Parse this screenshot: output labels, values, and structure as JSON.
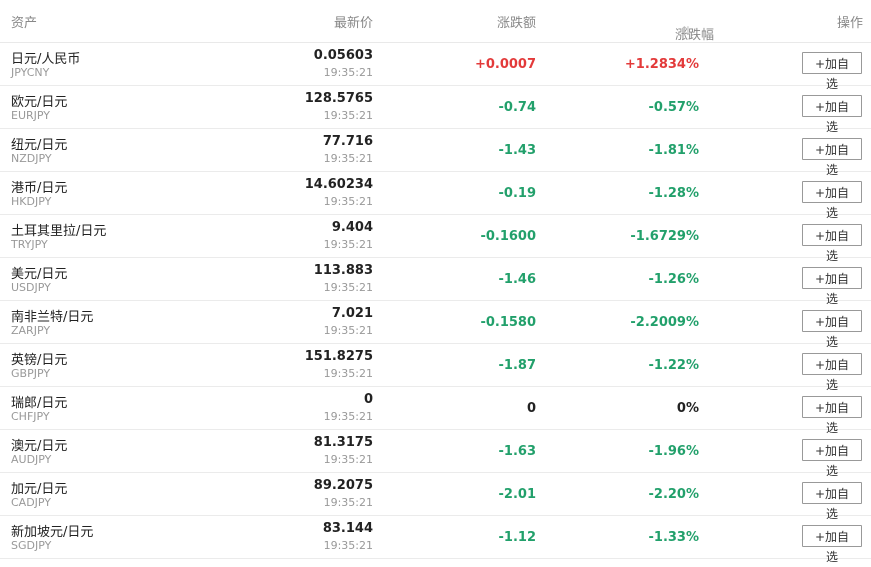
{
  "header": {
    "asset": "资产",
    "price": "最新价",
    "change": "涨跌额",
    "pct": "涨跌幅",
    "sort_icon": "⇅",
    "op": "操作"
  },
  "colors": {
    "up": "#e33a3a",
    "down": "#22a06b",
    "flat": "#222222"
  },
  "rows": [
    {
      "name": "日元/人民币",
      "code": "JPYCNY",
      "price": "0.05603",
      "time": "19:35:21",
      "change": "+0.0007",
      "pct": "+1.2834%",
      "trend": "up",
      "btn": "+加自选"
    },
    {
      "name": "欧元/日元",
      "code": "EURJPY",
      "price": "128.5765",
      "time": "19:35:21",
      "change": "-0.74",
      "pct": "-0.57%",
      "trend": "down",
      "btn": "+加自选"
    },
    {
      "name": "纽元/日元",
      "code": "NZDJPY",
      "price": "77.716",
      "time": "19:35:21",
      "change": "-1.43",
      "pct": "-1.81%",
      "trend": "down",
      "btn": "+加自选"
    },
    {
      "name": "港币/日元",
      "code": "HKDJPY",
      "price": "14.60234",
      "time": "19:35:21",
      "change": "-0.19",
      "pct": "-1.28%",
      "trend": "down",
      "btn": "+加自选"
    },
    {
      "name": "土耳其里拉/日元",
      "code": "TRYJPY",
      "price": "9.404",
      "time": "19:35:21",
      "change": "-0.1600",
      "pct": "-1.6729%",
      "trend": "down",
      "btn": "+加自选"
    },
    {
      "name": "美元/日元",
      "code": "USDJPY",
      "price": "113.883",
      "time": "19:35:21",
      "change": "-1.46",
      "pct": "-1.26%",
      "trend": "down",
      "btn": "+加自选"
    },
    {
      "name": "南非兰特/日元",
      "code": "ZARJPY",
      "price": "7.021",
      "time": "19:35:21",
      "change": "-0.1580",
      "pct": "-2.2009%",
      "trend": "down",
      "btn": "+加自选"
    },
    {
      "name": "英镑/日元",
      "code": "GBPJPY",
      "price": "151.8275",
      "time": "19:35:21",
      "change": "-1.87",
      "pct": "-1.22%",
      "trend": "down",
      "btn": "+加自选"
    },
    {
      "name": "瑞郎/日元",
      "code": "CHFJPY",
      "price": "0",
      "time": "19:35:21",
      "change": "0",
      "pct": "0%",
      "trend": "flat",
      "btn": "+加自选"
    },
    {
      "name": "澳元/日元",
      "code": "AUDJPY",
      "price": "81.3175",
      "time": "19:35:21",
      "change": "-1.63",
      "pct": "-1.96%",
      "trend": "down",
      "btn": "+加自选"
    },
    {
      "name": "加元/日元",
      "code": "CADJPY",
      "price": "89.2075",
      "time": "19:35:21",
      "change": "-2.01",
      "pct": "-2.20%",
      "trend": "down",
      "btn": "+加自选"
    },
    {
      "name": "新加坡元/日元",
      "code": "SGDJPY",
      "price": "83.144",
      "time": "19:35:21",
      "change": "-1.12",
      "pct": "-1.33%",
      "trend": "down",
      "btn": "+加自选"
    }
  ]
}
